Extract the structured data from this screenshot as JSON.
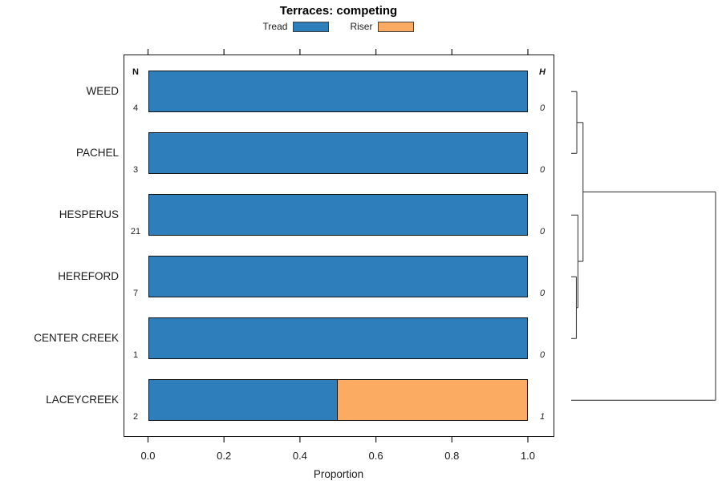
{
  "chart_data": {
    "type": "bar",
    "orientation": "horizontal-stacked",
    "title": "Terraces: competing",
    "xlabel": "Proportion",
    "xlim": [
      0,
      1
    ],
    "x_ticks": [
      "0.0",
      "0.2",
      "0.4",
      "0.6",
      "0.8",
      "1.0"
    ],
    "grid": false,
    "legend_position": "top-center",
    "series_names": [
      "Tread",
      "Riser"
    ],
    "n_header": "N",
    "h_header": "H",
    "categories": [
      "WEED",
      "PACHEL",
      "HESPERUS",
      "HEREFORD",
      "CENTER CREEK",
      "LACEYCREEK"
    ],
    "rows": [
      {
        "label": "WEED",
        "n": "4",
        "h": "0",
        "tread": 1.0,
        "riser": 0.0
      },
      {
        "label": "PACHEL",
        "n": "3",
        "h": "0",
        "tread": 1.0,
        "riser": 0.0
      },
      {
        "label": "HESPERUS",
        "n": "21",
        "h": "0",
        "tread": 1.0,
        "riser": 0.0
      },
      {
        "label": "HEREFORD",
        "n": "7",
        "h": "0",
        "tread": 1.0,
        "riser": 0.0
      },
      {
        "label": "CENTER CREEK",
        "n": "1",
        "h": "0",
        "tread": 1.0,
        "riser": 0.0
      },
      {
        "label": "LACEYCREEK",
        "n": "2",
        "h": "1",
        "tread": 0.5,
        "riser": 0.5
      }
    ],
    "dendrogram": {
      "side": "right",
      "leaf_order": [
        "WEED",
        "PACHEL",
        "HESPERUS",
        "HEREFORD",
        "CENTER CREEK",
        "LACEYCREEK"
      ],
      "merges": [
        {
          "children": [
            "WEED",
            "PACHEL"
          ],
          "height": 0.039
        },
        {
          "children": [
            "HEREFORD",
            "CENTER CREEK"
          ],
          "height": 0.036
        },
        {
          "children": [
            "HESPERUS",
            "@1"
          ],
          "height": 0.047
        },
        {
          "children": [
            "@0",
            "@2"
          ],
          "height": 0.082
        },
        {
          "children": [
            "@3",
            "LACEYCREEK"
          ],
          "height": 1.0
        }
      ]
    }
  },
  "legend": {
    "items": [
      {
        "label": "Tread",
        "color": "#2e7ebc"
      },
      {
        "label": "Riser",
        "color": "#fcac62"
      }
    ]
  }
}
